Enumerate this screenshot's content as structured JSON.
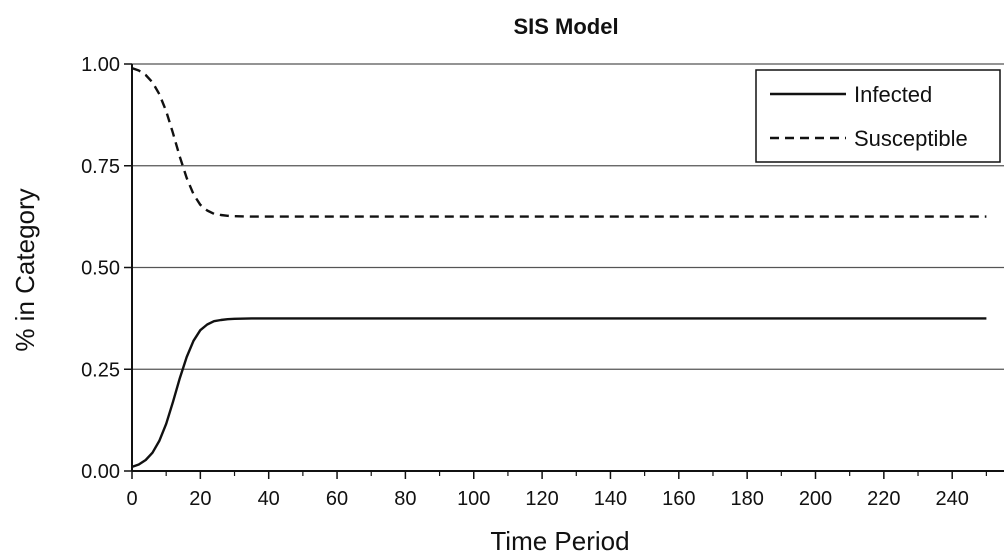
{
  "chart_data": {
    "type": "line",
    "title": "SIS Model",
    "xlabel": "Time Period",
    "ylabel": "% in Category",
    "xlim": [
      0,
      250
    ],
    "ylim": [
      0,
      1
    ],
    "x_ticks": [
      "0",
      "20",
      "40",
      "60",
      "80",
      "100",
      "120",
      "140",
      "160",
      "180",
      "200",
      "220",
      "240"
    ],
    "y_ticks": [
      "0.00",
      "0.25",
      "0.50",
      "0.75",
      "1.00"
    ],
    "grid": "horizontal",
    "legend_position": "top-right",
    "series": [
      {
        "name": "Infected",
        "style": "solid",
        "color": "#111111",
        "x": [
          0,
          2,
          4,
          6,
          8,
          10,
          12,
          14,
          16,
          18,
          20,
          22,
          24,
          26,
          28,
          30,
          35,
          40,
          60,
          100,
          150,
          200,
          250
        ],
        "values": [
          0.01,
          0.016,
          0.027,
          0.045,
          0.074,
          0.116,
          0.17,
          0.228,
          0.28,
          0.32,
          0.346,
          0.36,
          0.368,
          0.371,
          0.373,
          0.374,
          0.375,
          0.375,
          0.375,
          0.375,
          0.375,
          0.375,
          0.375
        ]
      },
      {
        "name": "Susceptible",
        "style": "dashed",
        "color": "#111111",
        "x": [
          0,
          2,
          4,
          6,
          8,
          10,
          12,
          14,
          16,
          18,
          20,
          22,
          24,
          26,
          28,
          30,
          35,
          40,
          60,
          100,
          150,
          200,
          250
        ],
        "values": [
          0.99,
          0.984,
          0.973,
          0.955,
          0.926,
          0.884,
          0.83,
          0.772,
          0.72,
          0.68,
          0.654,
          0.64,
          0.632,
          0.629,
          0.627,
          0.626,
          0.625,
          0.625,
          0.625,
          0.625,
          0.625,
          0.625,
          0.625
        ]
      }
    ]
  }
}
